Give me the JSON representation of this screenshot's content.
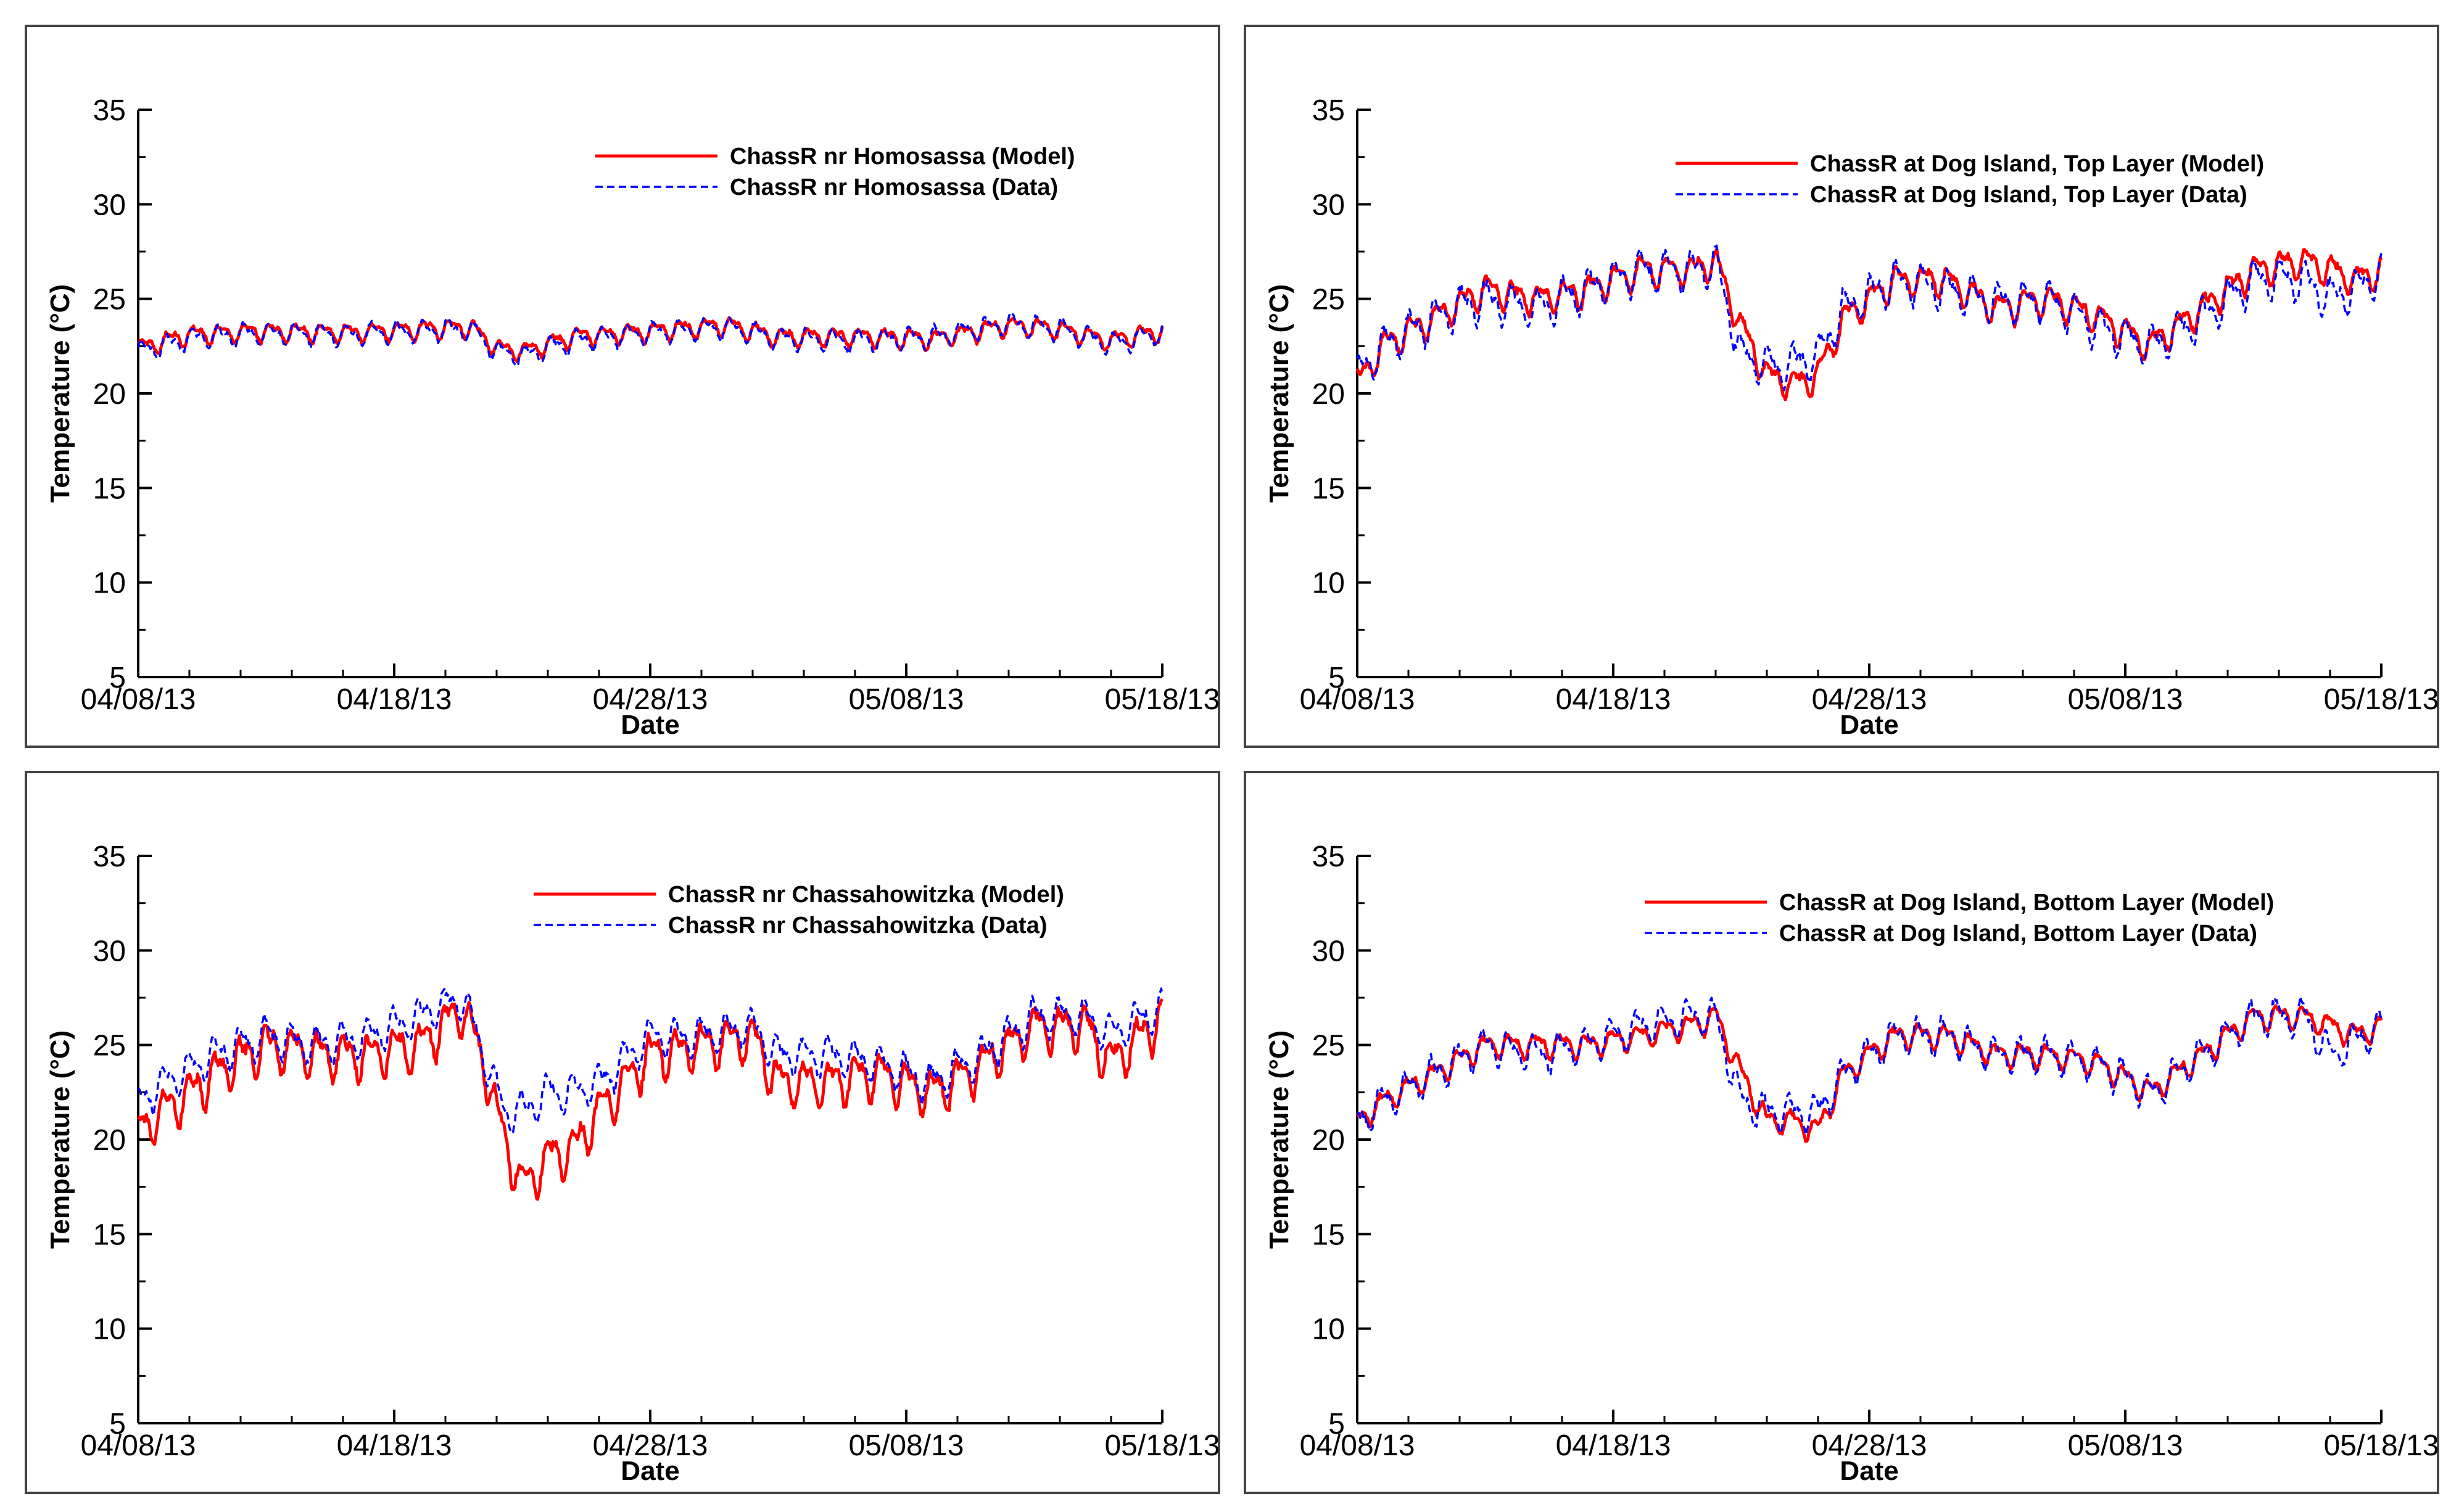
{
  "colors": {
    "model": "#ff0000",
    "data": "#0000ff",
    "axis": "#000000",
    "frame": "#444444"
  },
  "chart_data": [
    {
      "type": "line",
      "title": "",
      "xlabel": "Date",
      "ylabel": "Temperature (°C)",
      "xlim": [
        0,
        40
      ],
      "ylim": [
        5,
        35
      ],
      "yticks": [
        "5",
        "10",
        "15",
        "20",
        "25",
        "30",
        "35"
      ],
      "xticks": [
        {
          "day": 0,
          "label": "04/08/13"
        },
        {
          "day": 10,
          "label": "04/18/13"
        },
        {
          "day": 20,
          "label": "04/28/13"
        },
        {
          "day": 30,
          "label": "05/08/13"
        },
        {
          "day": 40,
          "label": "05/18/13"
        }
      ],
      "x_units": "days since 04/08/13",
      "series": [
        {
          "name": "ChassR nr Homosassa (Model)",
          "style": "solid",
          "amp": 0.8,
          "knots": [
            [
              0,
              22.4
            ],
            [
              2,
              23.1
            ],
            [
              5,
              23.3
            ],
            [
              8,
              23.2
            ],
            [
              11,
              23.4
            ],
            [
              13,
              23.5
            ],
            [
              14,
              22.4
            ],
            [
              15,
              22.2
            ],
            [
              17,
              23.0
            ],
            [
              20,
              23.3
            ],
            [
              23,
              23.6
            ],
            [
              25,
              23.0
            ],
            [
              28,
              23.0
            ],
            [
              31,
              22.9
            ],
            [
              34,
              23.6
            ],
            [
              36,
              23.4
            ],
            [
              38,
              22.8
            ],
            [
              40,
              23.3
            ]
          ]
        },
        {
          "name": "ChassR nr Homosassa (Data)",
          "style": "dashed",
          "amp": 0.9,
          "knots": [
            [
              0,
              22.2
            ],
            [
              2,
              22.9
            ],
            [
              5,
              23.2
            ],
            [
              8,
              23.1
            ],
            [
              11,
              23.3
            ],
            [
              13,
              23.4
            ],
            [
              14,
              22.2
            ],
            [
              15,
              22.0
            ],
            [
              17,
              22.8
            ],
            [
              20,
              23.2
            ],
            [
              23,
              23.5
            ],
            [
              25,
              22.9
            ],
            [
              28,
              22.8
            ],
            [
              31,
              23.0
            ],
            [
              34,
              23.7
            ],
            [
              36,
              23.4
            ],
            [
              38,
              22.6
            ],
            [
              40,
              23.2
            ]
          ]
        }
      ]
    },
    {
      "type": "line",
      "title": "",
      "xlabel": "Date",
      "ylabel": "Temperature (°C)",
      "xlim": [
        0,
        40
      ],
      "ylim": [
        5,
        35
      ],
      "yticks": [
        "5",
        "10",
        "15",
        "20",
        "25",
        "30",
        "35"
      ],
      "xticks": [
        {
          "day": 0,
          "label": "04/08/13"
        },
        {
          "day": 10,
          "label": "04/18/13"
        },
        {
          "day": 20,
          "label": "04/28/13"
        },
        {
          "day": 30,
          "label": "05/08/13"
        },
        {
          "day": 40,
          "label": "05/18/13"
        }
      ],
      "x_units": "days since 04/08/13",
      "series": [
        {
          "name": "ChassR at Dog Island, Top Layer (Model)",
          "style": "solid",
          "amp": 1.3,
          "knots": [
            [
              0,
              20.5
            ],
            [
              1,
              22.5
            ],
            [
              3,
              24.0
            ],
            [
              5,
              25.5
            ],
            [
              7,
              25.0
            ],
            [
              9,
              25.5
            ],
            [
              11,
              26.5
            ],
            [
              13,
              26.5
            ],
            [
              14,
              27.0
            ],
            [
              15,
              23.5
            ],
            [
              16,
              21.0
            ],
            [
              17,
              20.5
            ],
            [
              18,
              21.0
            ],
            [
              19,
              24.0
            ],
            [
              21,
              26.0
            ],
            [
              23,
              26.0
            ],
            [
              25,
              24.5
            ],
            [
              27,
              25.0
            ],
            [
              29,
              24.0
            ],
            [
              31,
              22.5
            ],
            [
              33,
              24.5
            ],
            [
              35,
              26.5
            ],
            [
              37,
              27.0
            ],
            [
              39,
              26.0
            ],
            [
              40,
              26.5
            ]
          ]
        },
        {
          "name": "ChassR at Dog Island, Top Layer (Data)",
          "style": "dashed",
          "amp": 1.7,
          "knots": [
            [
              0,
              21.0
            ],
            [
              1,
              22.5
            ],
            [
              3,
              24.0
            ],
            [
              5,
              25.0
            ],
            [
              7,
              24.5
            ],
            [
              9,
              25.5
            ],
            [
              11,
              26.5
            ],
            [
              13,
              26.5
            ],
            [
              14,
              26.8
            ],
            [
              15,
              22.0
            ],
            [
              16,
              21.5
            ],
            [
              17,
              21.5
            ],
            [
              18,
              22.0
            ],
            [
              19,
              24.5
            ],
            [
              21,
              26.0
            ],
            [
              23,
              25.5
            ],
            [
              25,
              24.8
            ],
            [
              27,
              25.0
            ],
            [
              29,
              23.5
            ],
            [
              31,
              22.5
            ],
            [
              33,
              24.0
            ],
            [
              35,
              26.0
            ],
            [
              37,
              26.0
            ],
            [
              38,
              25.0
            ],
            [
              39,
              25.5
            ],
            [
              40,
              26.5
            ]
          ]
        }
      ]
    },
    {
      "type": "line",
      "title": "",
      "xlabel": "Date",
      "ylabel": "Temperature (°C)",
      "xlim": [
        0,
        40
      ],
      "ylim": [
        5,
        35
      ],
      "yticks": [
        "5",
        "10",
        "15",
        "20",
        "25",
        "30",
        "35"
      ],
      "xticks": [
        {
          "day": 0,
          "label": "04/08/13"
        },
        {
          "day": 10,
          "label": "04/18/13"
        },
        {
          "day": 20,
          "label": "04/28/13"
        },
        {
          "day": 30,
          "label": "05/08/13"
        },
        {
          "day": 40,
          "label": "05/18/13"
        }
      ],
      "x_units": "days since 04/08/13",
      "series": [
        {
          "name": "ChassR nr Chassahowitzka (Model)",
          "style": "solid",
          "amp": 2.0,
          "knots": [
            [
              0,
              20.5
            ],
            [
              1,
              21.5
            ],
            [
              3,
              23.5
            ],
            [
              5,
              25.0
            ],
            [
              7,
              24.5
            ],
            [
              9,
              24.5
            ],
            [
              11,
              25.0
            ],
            [
              12.7,
              27.0
            ],
            [
              13.5,
              24.0
            ],
            [
              14.3,
              20.0
            ],
            [
              15,
              17.5
            ],
            [
              16,
              19.0
            ],
            [
              17,
              19.5
            ],
            [
              18,
              21.5
            ],
            [
              20,
              24.5
            ],
            [
              22,
              25.0
            ],
            [
              24,
              25.5
            ],
            [
              25,
              23.0
            ],
            [
              27,
              23.0
            ],
            [
              29,
              23.5
            ],
            [
              31,
              22.5
            ],
            [
              33,
              24.0
            ],
            [
              35,
              26.0
            ],
            [
              37,
              26.0
            ],
            [
              38,
              24.0
            ],
            [
              40,
              26.5
            ]
          ]
        },
        {
          "name": "ChassR nr Chassahowitzka (Data)",
          "style": "dashed",
          "amp": 1.6,
          "knots": [
            [
              0,
              22.0
            ],
            [
              1,
              23.0
            ],
            [
              3,
              24.5
            ],
            [
              5,
              25.5
            ],
            [
              7,
              25.0
            ],
            [
              9,
              25.5
            ],
            [
              11,
              26.5
            ],
            [
              12.7,
              27.5
            ],
            [
              13.5,
              24.5
            ],
            [
              14.3,
              21.5
            ],
            [
              15,
              21.5
            ],
            [
              16,
              22.5
            ],
            [
              17,
              22.5
            ],
            [
              18,
              23.0
            ],
            [
              20,
              25.5
            ],
            [
              22,
              25.5
            ],
            [
              24,
              26.0
            ],
            [
              25,
              24.5
            ],
            [
              27,
              24.5
            ],
            [
              29,
              24.0
            ],
            [
              31,
              23.0
            ],
            [
              33,
              24.5
            ],
            [
              35,
              26.5
            ],
            [
              37,
              26.5
            ],
            [
              38,
              25.5
            ],
            [
              40,
              27.0
            ]
          ]
        }
      ]
    },
    {
      "type": "line",
      "title": "",
      "xlabel": "Date",
      "ylabel": "Temperature (°C)",
      "xlim": [
        0,
        40
      ],
      "ylim": [
        5,
        35
      ],
      "yticks": [
        "5",
        "10",
        "15",
        "20",
        "25",
        "30",
        "35"
      ],
      "xticks": [
        {
          "day": 0,
          "label": "04/08/13"
        },
        {
          "day": 10,
          "label": "04/18/13"
        },
        {
          "day": 20,
          "label": "04/28/13"
        },
        {
          "day": 30,
          "label": "05/08/13"
        },
        {
          "day": 40,
          "label": "05/18/13"
        }
      ],
      "x_units": "days since 04/08/13",
      "series": [
        {
          "name": "ChassR at Dog Island, Bottom Layer (Model)",
          "style": "solid",
          "amp": 1.0,
          "knots": [
            [
              0,
              21.0
            ],
            [
              1,
              22.0
            ],
            [
              3,
              23.5
            ],
            [
              5,
              25.0
            ],
            [
              7,
              25.0
            ],
            [
              9,
              25.0
            ],
            [
              11,
              25.5
            ],
            [
              13,
              26.0
            ],
            [
              14,
              26.5
            ],
            [
              15,
              23.5
            ],
            [
              16,
              21.0
            ],
            [
              17,
              21.0
            ],
            [
              18,
              20.5
            ],
            [
              19,
              23.5
            ],
            [
              21,
              25.5
            ],
            [
              23,
              25.5
            ],
            [
              25,
              24.5
            ],
            [
              27,
              24.5
            ],
            [
              29,
              24.0
            ],
            [
              31,
              22.5
            ],
            [
              33,
              24.5
            ],
            [
              35,
              26.5
            ],
            [
              37,
              26.5
            ],
            [
              39,
              25.5
            ],
            [
              40,
              26.0
            ]
          ]
        },
        {
          "name": "ChassR at Dog Island, Bottom Layer (Data)",
          "style": "dashed",
          "amp": 1.5,
          "knots": [
            [
              0,
              21.0
            ],
            [
              1,
              22.0
            ],
            [
              3,
              23.5
            ],
            [
              5,
              25.0
            ],
            [
              7,
              24.5
            ],
            [
              9,
              25.0
            ],
            [
              11,
              26.0
            ],
            [
              13,
              26.5
            ],
            [
              14,
              26.5
            ],
            [
              15,
              22.0
            ],
            [
              16,
              21.5
            ],
            [
              17,
              21.5
            ],
            [
              18,
              21.5
            ],
            [
              19,
              23.5
            ],
            [
              21,
              25.5
            ],
            [
              23,
              25.5
            ],
            [
              25,
              24.5
            ],
            [
              27,
              24.5
            ],
            [
              29,
              24.0
            ],
            [
              31,
              22.5
            ],
            [
              33,
              24.5
            ],
            [
              35,
              26.5
            ],
            [
              37,
              26.5
            ],
            [
              38,
              24.5
            ],
            [
              40,
              26.0
            ]
          ]
        }
      ]
    }
  ]
}
